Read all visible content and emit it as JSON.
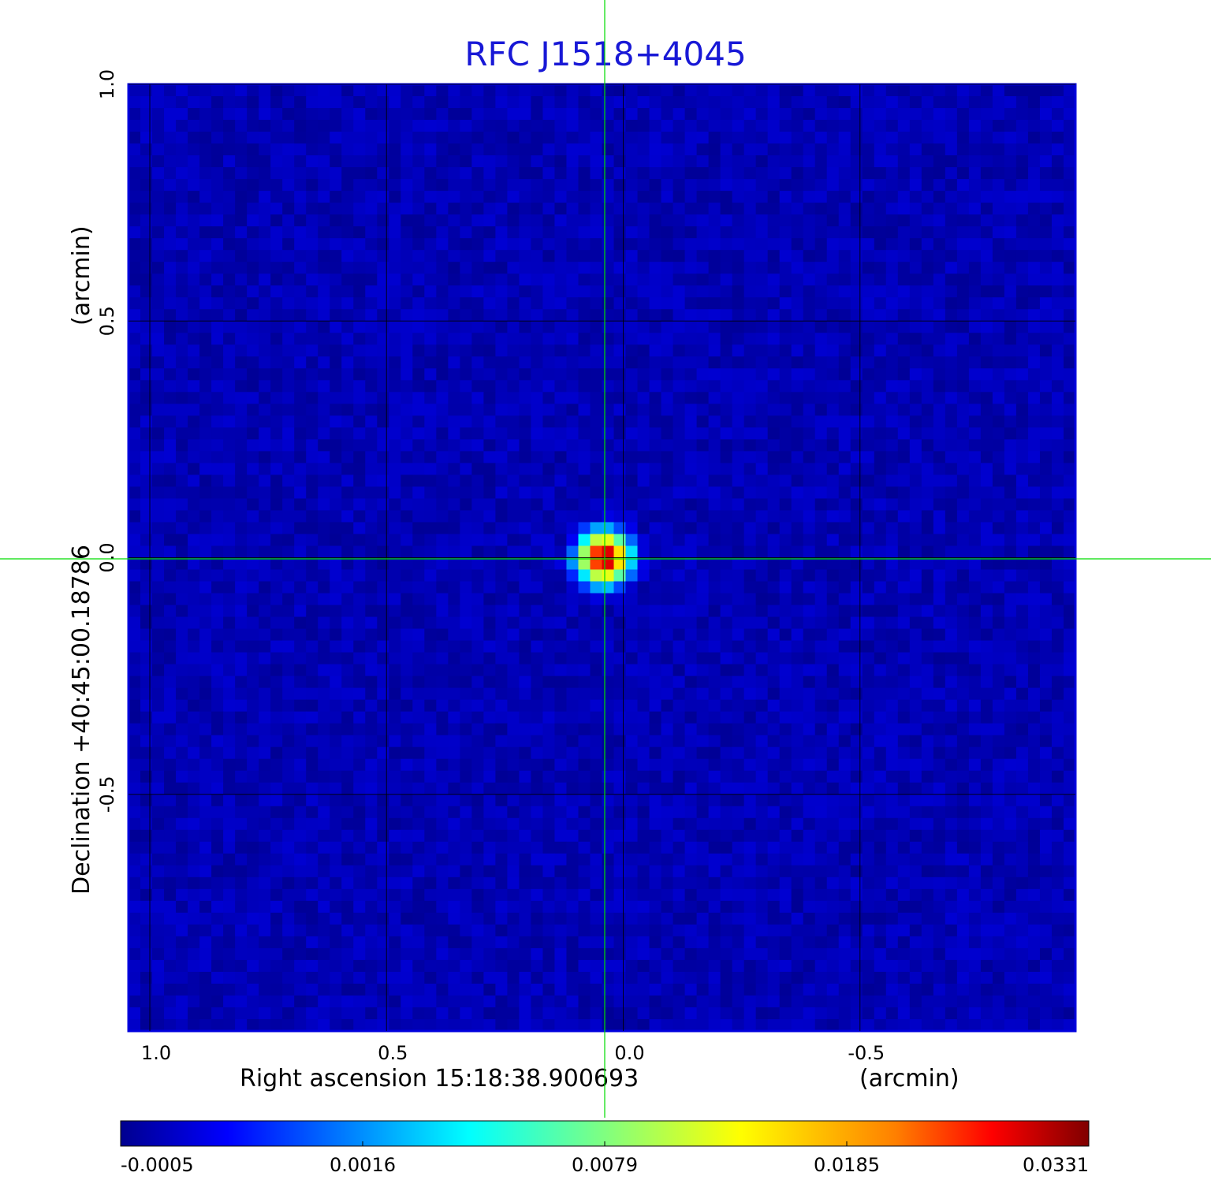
{
  "chart_data": {
    "type": "heatmap",
    "title": "RFC J1518+4045",
    "xlabel": "Right ascension  15:18:38.900693",
    "xunit": "(arcmin)",
    "ylabel": "Declination  +40:45:00.18786",
    "yunit": "(arcmin)",
    "x_range": [
      1.045,
      -0.955
    ],
    "y_range": [
      -1.0,
      1.0
    ],
    "x_ticks": [
      {
        "value": 1.0,
        "label": "1.0"
      },
      {
        "value": 0.5,
        "label": "0.5"
      },
      {
        "value": 0.0,
        "label": "0.0"
      },
      {
        "value": -0.5,
        "label": "-0.5"
      }
    ],
    "y_ticks": [
      {
        "value": 1.0,
        "label": "1.0"
      },
      {
        "value": 0.5,
        "label": "0.5"
      },
      {
        "value": 0.0,
        "label": "0.0"
      },
      {
        "value": -0.5,
        "label": "-0.5"
      }
    ],
    "grid": true,
    "crosshair": {
      "x": 0.04,
      "y": 0.0,
      "color": "#00dd00"
    },
    "source": {
      "x": 0.04,
      "y": 0.0,
      "peak": 0.0331
    },
    "noise_level": -0.0002,
    "colorbar": {
      "position": "bottom",
      "min": -0.0005,
      "max": 0.0331,
      "ticks": [
        "-0.0005",
        "0.0016",
        "0.0079",
        "0.0185",
        "0.0331"
      ],
      "colormap": [
        "#00008f",
        "#0000ff",
        "#00ffff",
        "#80ff80",
        "#ffff00",
        "#ff8000",
        "#ff0000",
        "#800000"
      ]
    }
  }
}
